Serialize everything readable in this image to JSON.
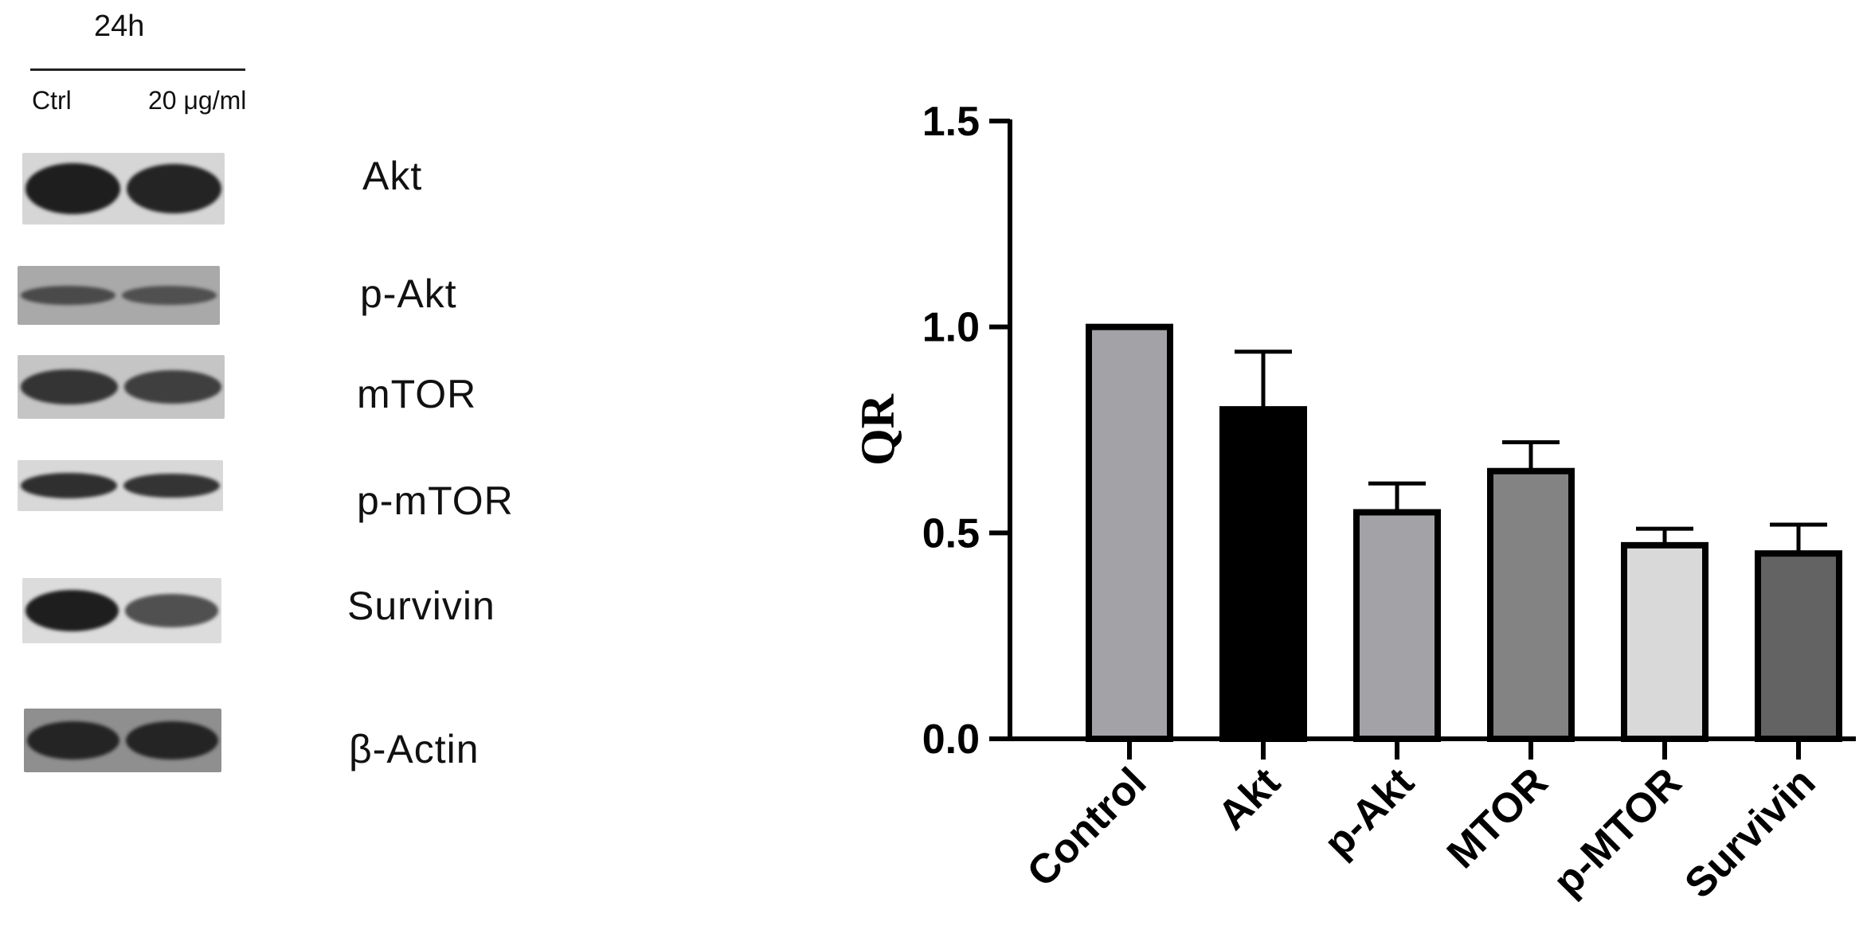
{
  "blot": {
    "time_label": "24h",
    "conditions": [
      "Ctrl",
      "20 μg/ml"
    ],
    "rows": [
      {
        "label": "Akt",
        "intensity": [
          1.0,
          0.95
        ]
      },
      {
        "label": "p-Akt",
        "intensity": [
          0.6,
          0.55
        ]
      },
      {
        "label": "mTOR",
        "intensity": [
          0.8,
          0.7
        ]
      },
      {
        "label": "p-mTOR",
        "intensity": [
          0.85,
          0.8
        ]
      },
      {
        "label": "Survivin",
        "intensity": [
          1.0,
          0.55
        ]
      },
      {
        "label": "β-Actin",
        "intensity": [
          0.95,
          0.95
        ]
      }
    ]
  },
  "chart_data": {
    "type": "bar",
    "title": "",
    "xlabel": "",
    "ylabel": "QR",
    "ylim": [
      0,
      1.5
    ],
    "yticks": [
      0.0,
      0.5,
      1.0,
      1.5
    ],
    "ytick_labels": [
      "0.0",
      "0.5",
      "1.0",
      "1.5"
    ],
    "categories": [
      "Control",
      "Akt",
      "p-Akt",
      "MTOR",
      "p-MTOR",
      "Survivin"
    ],
    "values": [
      1.0,
      0.8,
      0.55,
      0.65,
      0.47,
      0.45
    ],
    "errors": [
      0,
      0.14,
      0.07,
      0.07,
      0.04,
      0.07
    ],
    "colors": [
      "#a3a2a6",
      "#000000",
      "#a3a2a6",
      "#838383",
      "#d9d9d9",
      "#636363"
    ],
    "grid": false,
    "legend": "none"
  }
}
